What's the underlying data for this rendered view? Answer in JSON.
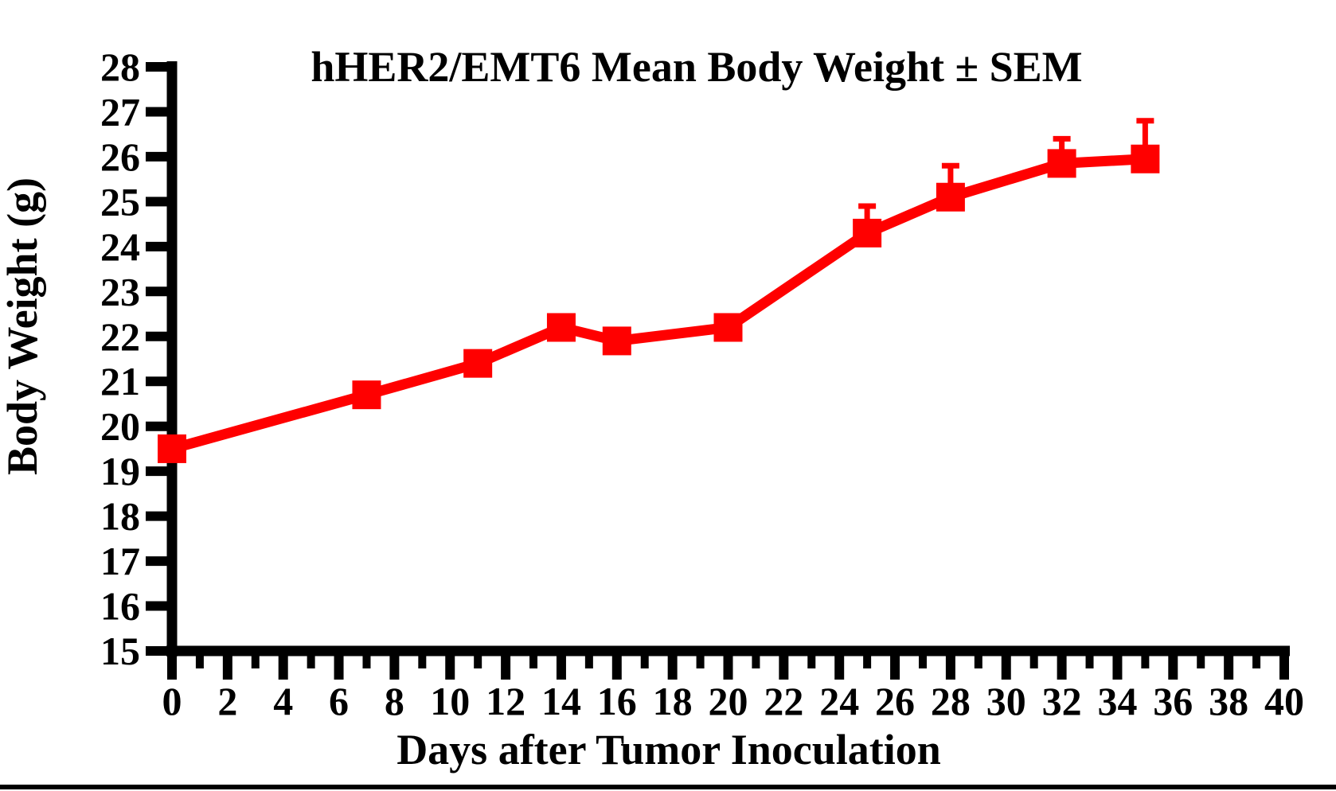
{
  "page": {
    "background_color": "#ffffff",
    "bottom_border_color": "#000000"
  },
  "chart_data": {
    "type": "line",
    "title": "hHER2/EMT6 Mean Body Weight ± SEM",
    "xlabel": "Days after Tumor Inoculation",
    "ylabel": "Body Weight (g)",
    "xlim": [
      0,
      40
    ],
    "ylim": [
      15,
      28
    ],
    "x_major_tick_step": 2,
    "x_minor_tick_step": 1,
    "y_tick_step": 1,
    "x_tick_labels": [
      "0",
      "2",
      "4",
      "6",
      "8",
      "10",
      "12",
      "14",
      "16",
      "18",
      "20",
      "22",
      "24",
      "26",
      "28",
      "30",
      "32",
      "34",
      "36",
      "38",
      "40"
    ],
    "y_tick_labels": [
      "15",
      "16",
      "17",
      "18",
      "19",
      "20",
      "21",
      "22",
      "23",
      "24",
      "25",
      "26",
      "27",
      "28"
    ],
    "grid": false,
    "legend_position": "none",
    "axis_color": "#000000",
    "series": [
      {
        "name": "hHER2/EMT6 mean body weight",
        "color": "#FF0000",
        "marker": "filled-square",
        "x": [
          0,
          7,
          11,
          14,
          16,
          20,
          25,
          28,
          32,
          35
        ],
        "y": [
          19.5,
          20.7,
          21.4,
          22.2,
          21.9,
          22.2,
          24.3,
          25.1,
          25.85,
          25.95
        ],
        "sem_upper": [
          0,
          0,
          0,
          0,
          0,
          0,
          0.6,
          0.7,
          0.55,
          0.85
        ]
      }
    ]
  }
}
